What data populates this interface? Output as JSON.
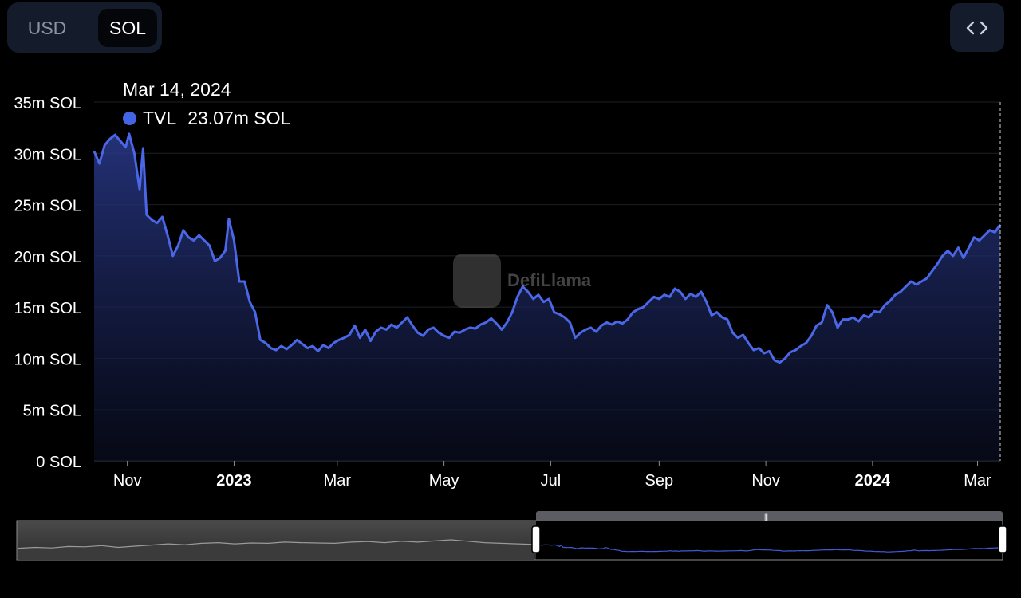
{
  "currency_toggle": {
    "usd_label": "USD",
    "sol_label": "SOL",
    "selected": "SOL"
  },
  "embed_button": {
    "icon": "code-brackets-icon"
  },
  "tooltip": {
    "date": "Mar 14, 2024",
    "series": "TVL",
    "value": "23.07m SOL",
    "dot_color": "#4464e6"
  },
  "watermark": {
    "text": "DefiLlama"
  },
  "colors": {
    "line": "#4a67e8",
    "background": "#000000",
    "grid": "#1c1f26",
    "brush_line": "#9a9a9a"
  },
  "chart_data": {
    "type": "area",
    "title": "",
    "xlabel": "",
    "ylabel": "",
    "y_unit": "SOL",
    "ylim": [
      0,
      35000000
    ],
    "yticks": [
      0,
      5000000,
      10000000,
      15000000,
      20000000,
      25000000,
      30000000,
      35000000
    ],
    "ytick_labels": [
      "0 SOL",
      "5m SOL",
      "10m SOL",
      "15m SOL",
      "20m SOL",
      "25m SOL",
      "30m SOL",
      "35m SOL"
    ],
    "xticks": [
      "2022-11-01",
      "2023-01-01",
      "2023-03-01",
      "2023-05-01",
      "2023-07-01",
      "2023-09-01",
      "2023-11-01",
      "2024-01-01",
      "2024-03-01"
    ],
    "xtick_labels": [
      "Nov",
      "2023",
      "Mar",
      "May",
      "Jul",
      "Sep",
      "Nov",
      "2024",
      "Mar"
    ],
    "xtick_bold": [
      false,
      true,
      false,
      false,
      false,
      false,
      false,
      true,
      false
    ],
    "xlim": [
      "2022-10-13",
      "2024-03-14"
    ],
    "grid": true,
    "series": [
      {
        "name": "TVL",
        "color": "#4a67e8",
        "points": [
          [
            "2022-10-13",
            30.2
          ],
          [
            "2022-10-16",
            29.0
          ],
          [
            "2022-10-19",
            30.8
          ],
          [
            "2022-10-22",
            31.4
          ],
          [
            "2022-10-25",
            31.8
          ],
          [
            "2022-10-28",
            31.2
          ],
          [
            "2022-10-31",
            30.6
          ],
          [
            "2022-11-02",
            31.9
          ],
          [
            "2022-11-05",
            30.0
          ],
          [
            "2022-11-08",
            26.5
          ],
          [
            "2022-11-10",
            30.5
          ],
          [
            "2022-11-12",
            24.0
          ],
          [
            "2022-11-15",
            23.5
          ],
          [
            "2022-11-18",
            23.2
          ],
          [
            "2022-11-21",
            23.8
          ],
          [
            "2022-11-24",
            22.0
          ],
          [
            "2022-11-27",
            20.0
          ],
          [
            "2022-11-30",
            21.0
          ],
          [
            "2022-12-03",
            22.5
          ],
          [
            "2022-12-06",
            21.8
          ],
          [
            "2022-12-09",
            21.5
          ],
          [
            "2022-12-12",
            22.0
          ],
          [
            "2022-12-15",
            21.5
          ],
          [
            "2022-12-18",
            21.0
          ],
          [
            "2022-12-21",
            19.5
          ],
          [
            "2022-12-24",
            19.8
          ],
          [
            "2022-12-27",
            20.5
          ],
          [
            "2022-12-29",
            23.6
          ],
          [
            "2023-01-01",
            21.5
          ],
          [
            "2023-01-04",
            17.5
          ],
          [
            "2023-01-07",
            17.5
          ],
          [
            "2023-01-10",
            15.5
          ],
          [
            "2023-01-13",
            14.5
          ],
          [
            "2023-01-16",
            11.8
          ],
          [
            "2023-01-19",
            11.5
          ],
          [
            "2023-01-22",
            11.0
          ],
          [
            "2023-01-25",
            10.8
          ],
          [
            "2023-01-28",
            11.2
          ],
          [
            "2023-01-31",
            10.9
          ],
          [
            "2023-02-03",
            11.3
          ],
          [
            "2023-02-06",
            11.8
          ],
          [
            "2023-02-09",
            11.4
          ],
          [
            "2023-02-12",
            11.0
          ],
          [
            "2023-02-15",
            11.2
          ],
          [
            "2023-02-18",
            10.7
          ],
          [
            "2023-02-21",
            11.3
          ],
          [
            "2023-02-24",
            11.0
          ],
          [
            "2023-02-27",
            11.5
          ],
          [
            "2023-03-02",
            11.8
          ],
          [
            "2023-03-05",
            12.0
          ],
          [
            "2023-03-08",
            12.3
          ],
          [
            "2023-03-11",
            13.2
          ],
          [
            "2023-03-14",
            12.0
          ],
          [
            "2023-03-17",
            12.8
          ],
          [
            "2023-03-20",
            11.7
          ],
          [
            "2023-03-23",
            12.6
          ],
          [
            "2023-03-26",
            13.0
          ],
          [
            "2023-03-29",
            12.8
          ],
          [
            "2023-04-01",
            13.3
          ],
          [
            "2023-04-04",
            13.0
          ],
          [
            "2023-04-07",
            13.5
          ],
          [
            "2023-04-10",
            14.0
          ],
          [
            "2023-04-13",
            13.2
          ],
          [
            "2023-04-16",
            12.5
          ],
          [
            "2023-04-19",
            12.2
          ],
          [
            "2023-04-22",
            12.8
          ],
          [
            "2023-04-25",
            13.0
          ],
          [
            "2023-04-28",
            12.5
          ],
          [
            "2023-05-01",
            12.2
          ],
          [
            "2023-05-04",
            12.0
          ],
          [
            "2023-05-07",
            12.6
          ],
          [
            "2023-05-10",
            12.5
          ],
          [
            "2023-05-13",
            12.8
          ],
          [
            "2023-05-16",
            13.0
          ],
          [
            "2023-05-19",
            12.9
          ],
          [
            "2023-05-22",
            13.3
          ],
          [
            "2023-05-25",
            13.5
          ],
          [
            "2023-05-28",
            13.9
          ],
          [
            "2023-05-31",
            13.4
          ],
          [
            "2023-06-03",
            12.8
          ],
          [
            "2023-06-06",
            13.5
          ],
          [
            "2023-06-09",
            14.5
          ],
          [
            "2023-06-12",
            16.0
          ],
          [
            "2023-06-15",
            17.0
          ],
          [
            "2023-06-18",
            16.5
          ],
          [
            "2023-06-21",
            15.8
          ],
          [
            "2023-06-24",
            16.2
          ],
          [
            "2023-06-27",
            15.5
          ],
          [
            "2023-06-30",
            15.8
          ],
          [
            "2023-07-03",
            14.5
          ],
          [
            "2023-07-06",
            14.3
          ],
          [
            "2023-07-09",
            14.0
          ],
          [
            "2023-07-12",
            13.5
          ],
          [
            "2023-07-15",
            12.0
          ],
          [
            "2023-07-18",
            12.5
          ],
          [
            "2023-07-21",
            12.8
          ],
          [
            "2023-07-24",
            13.0
          ],
          [
            "2023-07-27",
            12.6
          ],
          [
            "2023-07-30",
            13.2
          ],
          [
            "2023-08-02",
            13.5
          ],
          [
            "2023-08-05",
            13.3
          ],
          [
            "2023-08-08",
            13.6
          ],
          [
            "2023-08-11",
            13.4
          ],
          [
            "2023-08-14",
            13.8
          ],
          [
            "2023-08-17",
            14.5
          ],
          [
            "2023-08-20",
            14.8
          ],
          [
            "2023-08-23",
            15.0
          ],
          [
            "2023-08-26",
            15.5
          ],
          [
            "2023-08-29",
            16.0
          ],
          [
            "2023-09-01",
            15.8
          ],
          [
            "2023-09-04",
            16.2
          ],
          [
            "2023-09-07",
            16.0
          ],
          [
            "2023-09-10",
            16.8
          ],
          [
            "2023-09-13",
            16.5
          ],
          [
            "2023-09-16",
            15.8
          ],
          [
            "2023-09-19",
            16.3
          ],
          [
            "2023-09-22",
            16.0
          ],
          [
            "2023-09-25",
            16.5
          ],
          [
            "2023-09-28",
            15.5
          ],
          [
            "2023-10-01",
            14.2
          ],
          [
            "2023-10-04",
            14.5
          ],
          [
            "2023-10-07",
            14.0
          ],
          [
            "2023-10-10",
            13.8
          ],
          [
            "2023-10-13",
            12.5
          ],
          [
            "2023-10-16",
            12.0
          ],
          [
            "2023-10-19",
            12.3
          ],
          [
            "2023-10-22",
            11.5
          ],
          [
            "2023-10-25",
            10.8
          ],
          [
            "2023-10-28",
            11.0
          ],
          [
            "2023-10-31",
            10.5
          ],
          [
            "2023-11-03",
            10.7
          ],
          [
            "2023-11-06",
            9.8
          ],
          [
            "2023-11-09",
            9.6
          ],
          [
            "2023-11-12",
            10.0
          ],
          [
            "2023-11-15",
            10.6
          ],
          [
            "2023-11-18",
            10.8
          ],
          [
            "2023-11-21",
            11.2
          ],
          [
            "2023-11-24",
            11.5
          ],
          [
            "2023-11-27",
            12.2
          ],
          [
            "2023-11-30",
            13.2
          ],
          [
            "2023-12-03",
            13.5
          ],
          [
            "2023-12-06",
            15.2
          ],
          [
            "2023-12-09",
            14.5
          ],
          [
            "2023-12-12",
            13.0
          ],
          [
            "2023-12-15",
            13.8
          ],
          [
            "2023-12-18",
            13.8
          ],
          [
            "2023-12-21",
            14.0
          ],
          [
            "2023-12-24",
            13.6
          ],
          [
            "2023-12-27",
            14.2
          ],
          [
            "2023-12-30",
            14.0
          ],
          [
            "2024-01-02",
            14.6
          ],
          [
            "2024-01-05",
            14.5
          ],
          [
            "2024-01-08",
            15.2
          ],
          [
            "2024-01-11",
            15.6
          ],
          [
            "2024-01-14",
            16.2
          ],
          [
            "2024-01-17",
            16.5
          ],
          [
            "2024-01-20",
            17.0
          ],
          [
            "2024-01-23",
            17.5
          ],
          [
            "2024-01-26",
            17.2
          ],
          [
            "2024-01-29",
            17.5
          ],
          [
            "2024-02-01",
            17.8
          ],
          [
            "2024-02-04",
            18.5
          ],
          [
            "2024-02-07",
            19.2
          ],
          [
            "2024-02-10",
            20.0
          ],
          [
            "2024-02-13",
            20.5
          ],
          [
            "2024-02-16",
            20.0
          ],
          [
            "2024-02-19",
            20.8
          ],
          [
            "2024-02-22",
            19.8
          ],
          [
            "2024-02-25",
            20.8
          ],
          [
            "2024-02-28",
            21.8
          ],
          [
            "2024-03-02",
            21.5
          ],
          [
            "2024-03-05",
            22.0
          ],
          [
            "2024-03-08",
            22.5
          ],
          [
            "2024-03-11",
            22.3
          ],
          [
            "2024-03-14",
            23.07
          ]
        ],
        "value_unit": "m SOL"
      }
    ],
    "range_selector": {
      "selected_start": "2022-10-13",
      "selected_end": "2024-03-14",
      "overview_points": [
        0.2,
        0.25,
        0.22,
        0.3,
        0.28,
        0.35,
        0.25,
        0.32,
        0.38,
        0.45,
        0.4,
        0.48,
        0.52,
        0.45,
        0.5,
        0.48,
        0.55,
        0.52,
        0.5,
        0.48,
        0.55,
        0.58,
        0.52,
        0.6,
        0.55,
        0.62,
        0.68,
        0.6,
        0.52,
        0.48,
        0.45,
        0.42
      ]
    }
  }
}
